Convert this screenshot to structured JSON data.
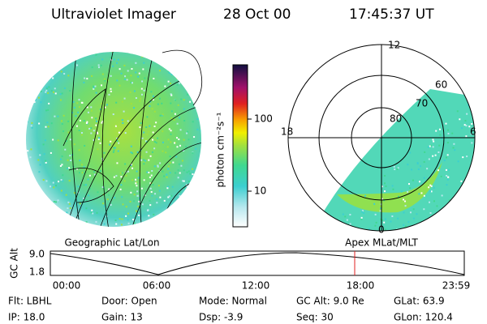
{
  "header": {
    "title": "Ultraviolet Imager",
    "date": "28 Oct 00",
    "time": "17:45:37 UT"
  },
  "colorbar": {
    "label": "photon cm⁻²s⁻¹",
    "ticks": [
      "100",
      "10"
    ]
  },
  "left_image": {
    "caption": "Geographic Lat/Lon"
  },
  "right_image": {
    "caption": "Apex MLat/MLT",
    "mlt_labels": [
      "12",
      "18",
      "6",
      "0"
    ],
    "mlat_labels": [
      "60",
      "70",
      "80"
    ]
  },
  "altitude_plot": {
    "ylabel": "GC Alt",
    "yticks": [
      "9.0",
      "1.8"
    ],
    "xticks": [
      "00:00",
      "06:00",
      "12:00",
      "18:00",
      "23:59"
    ]
  },
  "info": [
    [
      "Flt: LBHL",
      "IP: 18.0"
    ],
    [
      "Door: Open",
      "Gain: 13"
    ],
    [
      "Mode: Normal",
      "Dsp:   -3.9"
    ],
    [
      "GC Alt: 9.0 Re",
      "Seq: 30"
    ],
    [
      "GLat: 63.9",
      "GLon: 120.4"
    ]
  ]
}
